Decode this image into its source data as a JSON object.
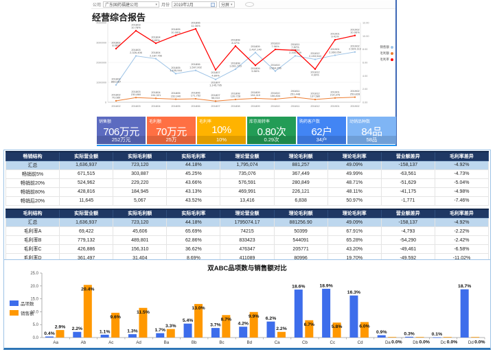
{
  "toolbar": {
    "company_label": "公司",
    "company_value": "广东国药福建公司",
    "month_label": "月份",
    "month_value": "2019年2月",
    "split_button": "分屏"
  },
  "report": {
    "title": "经营综合报告"
  },
  "kpi_cards": [
    {
      "title": "销售额",
      "value": "706万元",
      "sub": "252万元",
      "color": "#5C6BC0"
    },
    {
      "title": "毛利额",
      "value": "70万元",
      "sub": "25万",
      "color": "#FF7043"
    },
    {
      "title": "毛利率",
      "value": "10%",
      "sub": "10%",
      "color": "#FFB300"
    },
    {
      "title": "库存周转率",
      "value": "0.80次",
      "sub": "0.29次",
      "color": "#239C56"
    },
    {
      "title": "购药客户数",
      "value": "62户",
      "sub": "34户",
      "color": "#4285F4"
    },
    {
      "title": "动销品种数",
      "value": "84品",
      "sub": "58品",
      "color": "#7FB5F5"
    }
  ],
  "tables": [
    {
      "headers": [
        "畅销结构",
        "实际营业额",
        "实际毛利额",
        "实际毛利率",
        "理论营业额",
        "理论毛利额",
        "理论毛利率",
        "营业额差异",
        "毛利率差异"
      ],
      "rows": [
        [
          "汇总",
          "1,636,937",
          "723,120",
          "44.18%",
          "1,795,074",
          "881,257",
          "49.09%",
          "-158,137",
          "-4.92%"
        ],
        [
          "畅销前5%",
          "671,515",
          "303,887",
          "45.25%",
          "735,076",
          "367,449",
          "49.99%",
          "-63,561",
          "-4.73%"
        ],
        [
          "畅销前20%",
          "524,962",
          "229,220",
          "43.66%",
          "576,591",
          "280,849",
          "48.71%",
          "-51,629",
          "-5.04%"
        ],
        [
          "畅销前80%",
          "428,816",
          "184,945",
          "43.13%",
          "469,991",
          "226,121",
          "48.11%",
          "-41,175",
          "-4.98%"
        ],
        [
          "畅销后20%",
          "11,645",
          "5,067",
          "43.52%",
          "13,416",
          "6,838",
          "50.97%",
          "-1,771",
          "-7.46%"
        ]
      ]
    },
    {
      "headers": [
        "毛利结构",
        "实际营业额",
        "实际毛利额",
        "实际毛利率",
        "理论营业额",
        "理论毛利额",
        "理论毛利率",
        "营业额差异",
        "毛利率差异"
      ],
      "rows": [
        [
          "汇总",
          "1,636,937",
          "723,120",
          "44.18%",
          "1795074.17",
          "881256.90",
          "49.09%",
          "-158,137",
          "-4.92%"
        ],
        [
          "毛利率A",
          "69,422",
          "45,606",
          "65.69%",
          "74215",
          "50399",
          "67.91%",
          "-4,793",
          "-2.22%"
        ],
        [
          "毛利率B",
          "779,132",
          "489,801",
          "62.86%",
          "833423",
          "544091",
          "65.28%",
          "-54,290",
          "-2.42%"
        ],
        [
          "毛利率C",
          "426,886",
          "156,310",
          "36.62%",
          "476347",
          "205771",
          "43.20%",
          "-49,461",
          "-6.58%"
        ],
        [
          "毛利率D",
          "361,497",
          "31,404",
          "8.69%",
          "411089",
          "80996",
          "19.70%",
          "-49,592",
          "-11.02%"
        ]
      ]
    }
  ],
  "chart_data": [
    {
      "type": "line",
      "title": "",
      "x": [
        "201802",
        "201803",
        "201804",
        "201805",
        "201806",
        "201807",
        "201808",
        "201809",
        "201810",
        "201811",
        "201812",
        "201901",
        "201902"
      ],
      "series": [
        {
          "name": "销售额",
          "color": "#9DC3E6",
          "axis": "left",
          "label_below": [
            5
          ],
          "values": [
            869087,
            2326406,
            2187756,
            1435944,
            1597002,
            1145795,
            1661723,
            2497140,
            1564256,
            2330629,
            2153544,
            2360054,
            2524113
          ]
        },
        {
          "name": "毛利额",
          "color": "#ED7D31",
          "axis": "left",
          "label_below": [],
          "values": [
            70080,
            230860,
            194321,
            152040,
            171752,
            56010,
            139728,
            194110,
            156834,
            251448,
            137580,
            214376,
            253828
          ]
        },
        {
          "name": "毛利率",
          "color": "#FF0000",
          "axis": "right",
          "format": "percent",
          "label_below": [
            5,
            7,
            10
          ],
          "values": [
            8.08,
            10.78,
            8.89,
            10.08,
            11.06,
            4.89,
            8.47,
            5.56,
            7.96,
            7.82,
            4.99,
            9.41,
            10.06
          ]
        }
      ],
      "left_axis": {
        "min": 0,
        "max": 4000000,
        "ticks": [
          0,
          1000000,
          2000000,
          3000000,
          4000000
        ]
      },
      "right_axis": {
        "min": 0,
        "max": 12,
        "ticks": [
          0,
          2,
          4,
          6,
          8,
          10,
          12
        ]
      },
      "legend_position": "right",
      "grid": true
    },
    {
      "type": "bar",
      "title": "双ABC品项数与销售额对比",
      "categories": [
        "Aa",
        "Ab",
        "Ac",
        "Ad",
        "Ba",
        "Bb",
        "Bc",
        "Bd",
        "Ca",
        "Cb",
        "Cc",
        "Cd",
        "Da",
        "Db",
        "Dc",
        "Dd"
      ],
      "series": [
        {
          "name": "品项数",
          "color": "#3D6DEB",
          "values": [
            0.4,
            2.2,
            1.1,
            1.3,
            1.7,
            5.4,
            3.7,
            4.2,
            6.2,
            18.6,
            18.9,
            16.3,
            0.9,
            0.3,
            0.1,
            18.7
          ]
        },
        {
          "name": "销售额",
          "color": "#FF9800",
          "values": [
            2.9,
            20.4,
            9.6,
            11.5,
            3.3,
            13.0,
            8.7,
            9.9,
            2.2,
            6.7,
            5.8,
            6.0,
            0.0,
            0.0,
            0.0,
            0.0
          ]
        }
      ],
      "ylim": [
        0,
        25
      ],
      "yticks": [
        0,
        5,
        10,
        15,
        20,
        25
      ],
      "value_suffix": "%",
      "xlabel": "",
      "ylabel": "",
      "legend_position": "left",
      "grid": false
    }
  ]
}
